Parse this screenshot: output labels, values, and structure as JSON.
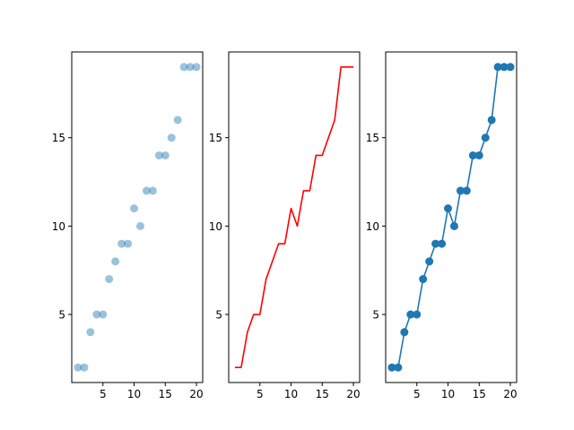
{
  "chart_data": [
    {
      "type": "scatter",
      "title": "",
      "xlabel": "",
      "ylabel": "",
      "grid": false,
      "xlim": [
        0,
        21
      ],
      "ylim": [
        1.15,
        19.85
      ],
      "xticks": [
        5,
        10,
        15,
        20
      ],
      "yticks": [
        5,
        10,
        15
      ],
      "series": [
        {
          "x": [
            1,
            2,
            3,
            4,
            5,
            6,
            7,
            8,
            9,
            10,
            11,
            12,
            13,
            14,
            15,
            16,
            17,
            18,
            19,
            20
          ],
          "y": [
            2,
            2,
            4,
            5,
            5,
            7,
            8,
            9,
            9,
            11,
            10,
            12,
            12,
            14,
            14,
            15,
            16,
            19,
            19,
            19
          ],
          "color": "#1f77b4",
          "alpha": 0.45,
          "marker": "circle",
          "line": false
        }
      ]
    },
    {
      "type": "line",
      "title": "",
      "xlabel": "",
      "ylabel": "",
      "grid": false,
      "xlim": [
        0,
        21
      ],
      "ylim": [
        1.15,
        19.85
      ],
      "xticks": [
        5,
        10,
        15,
        20
      ],
      "yticks": [
        5,
        10,
        15
      ],
      "series": [
        {
          "x": [
            1,
            2,
            3,
            4,
            5,
            6,
            7,
            8,
            9,
            10,
            11,
            12,
            13,
            14,
            15,
            16,
            17,
            18,
            19,
            20
          ],
          "y": [
            2,
            2,
            4,
            5,
            5,
            7,
            8,
            9,
            9,
            11,
            10,
            12,
            12,
            14,
            14,
            15,
            16,
            19,
            19,
            19
          ],
          "color": "#ff0000",
          "marker": "none",
          "line": true
        }
      ]
    },
    {
      "type": "line",
      "title": "",
      "xlabel": "",
      "ylabel": "",
      "grid": false,
      "xlim": [
        0,
        21
      ],
      "ylim": [
        1.15,
        19.85
      ],
      "xticks": [
        5,
        10,
        15,
        20
      ],
      "yticks": [
        5,
        10,
        15
      ],
      "series": [
        {
          "x": [
            1,
            2,
            3,
            4,
            5,
            6,
            7,
            8,
            9,
            10,
            11,
            12,
            13,
            14,
            15,
            16,
            17,
            18,
            19,
            20
          ],
          "y": [
            2,
            2,
            4,
            5,
            5,
            7,
            8,
            9,
            9,
            11,
            10,
            12,
            12,
            14,
            14,
            15,
            16,
            19,
            19,
            19
          ],
          "color": "#1f77b4",
          "marker": "circle",
          "line": true
        }
      ]
    }
  ]
}
